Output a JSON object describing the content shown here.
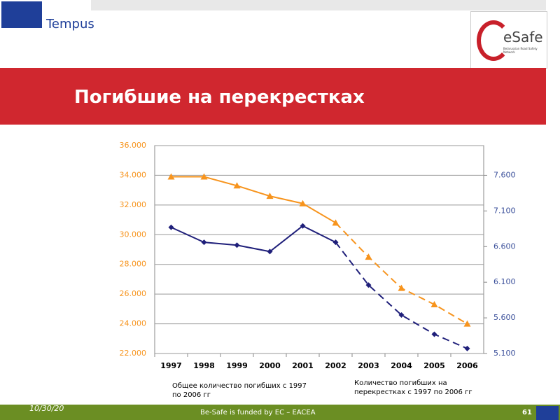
{
  "header": {
    "logo_text": "Tempus",
    "esafe_text": "eSafe",
    "esafe_subtitle": "Belarussian Road Safety Network",
    "slide_title": "Погибшие на перекрестках"
  },
  "footer": {
    "date": "10/30/20",
    "funding": "Be-Safe is funded by EC – EACEA",
    "page": "61"
  },
  "chart_data": {
    "type": "line",
    "categories": [
      "1997",
      "1998",
      "1999",
      "2000",
      "2001",
      "2002",
      "2003",
      "2004",
      "2005",
      "2006"
    ],
    "dashed_from": "2002",
    "ylim": [
      22000,
      36000
    ],
    "yticks": [
      {
        "value": 22000,
        "label": "22.000"
      },
      {
        "value": 24000,
        "label": "24.000"
      },
      {
        "value": 26000,
        "label": "26.000"
      },
      {
        "value": 28000,
        "label": "28.000"
      },
      {
        "value": 30000,
        "label": "30.000"
      },
      {
        "value": 32000,
        "label": "32.000"
      },
      {
        "value": 34000,
        "label": "34.000"
      },
      {
        "value": 36000,
        "label": "36.000"
      }
    ],
    "y2lim": [
      5100,
      8016.7
    ],
    "y2ticks": [
      {
        "value": 5100,
        "label": "5.100"
      },
      {
        "value": 5600,
        "label": "5.600"
      },
      {
        "value": 6100,
        "label": "6.100"
      },
      {
        "value": 6600,
        "label": "6.600"
      },
      {
        "value": 7100,
        "label": "7.100"
      },
      {
        "value": 7600,
        "label": "7.600"
      }
    ],
    "grid": true,
    "series": [
      {
        "name": "Общее количество погибших с 1997 по 2006 гг",
        "color": "#f7941d",
        "marker": "triangle",
        "values": [
          33900,
          33900,
          33300,
          32600,
          32100,
          30800,
          28500,
          26400,
          25300,
          24000
        ]
      },
      {
        "name": "Количество погибших на перекрестках с 1997 по 2006 гг",
        "color": "#1f1f7a",
        "marker": "diamond",
        "axis": "y2",
        "values": [
          6870,
          6660,
          6620,
          6530,
          6890,
          6660,
          6060,
          5640,
          5370,
          5170
        ]
      }
    ]
  }
}
